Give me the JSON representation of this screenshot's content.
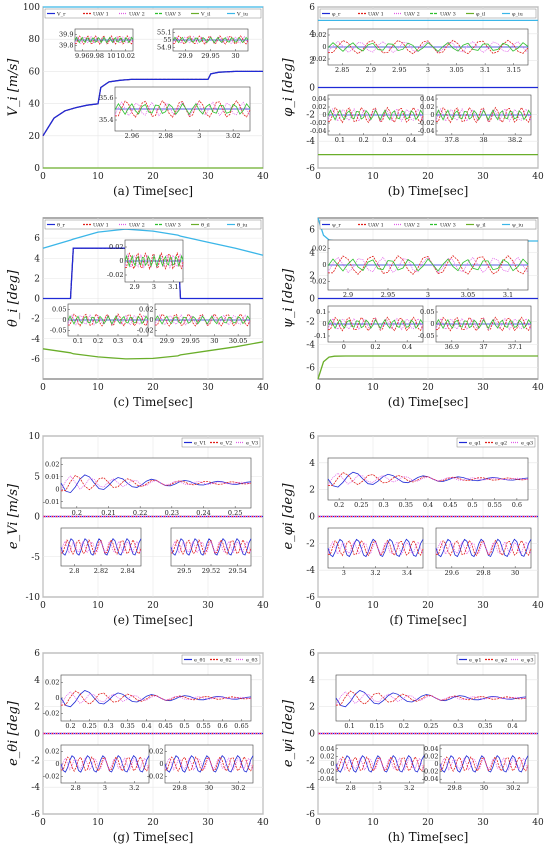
{
  "panels": [
    {
      "id": "a",
      "caption": "(a) Time[sec]",
      "ylabel": "V_i [m/s]",
      "xlim": [
        0,
        40
      ],
      "ylim": [
        0,
        100
      ],
      "xticks": [
        "0",
        "10",
        "20",
        "30",
        "40"
      ],
      "yticks": [
        "0",
        "20",
        "40",
        "60",
        "80",
        "100"
      ],
      "legend": [
        "V_r",
        "UAV 1",
        "UAV 2",
        "UAV 3",
        "V_il",
        "V_iu"
      ],
      "insets": [
        {
          "xticks": [
            "9.96",
            "9.98",
            "10",
            "10.02"
          ],
          "yticks": [
            "39.8",
            "39.9"
          ]
        },
        {
          "xticks": [
            "29.9",
            "29.95",
            "30"
          ],
          "yticks": [
            "54.9",
            "55",
            "55.1"
          ]
        },
        {
          "xticks": [
            "2.96",
            "2.98",
            "3",
            "3.02"
          ],
          "yticks": [
            "35.4",
            "35.6"
          ]
        }
      ]
    },
    {
      "id": "b",
      "caption": "(b) Time[sec]",
      "ylabel": "φ_i [deg]",
      "xlim": [
        0,
        40
      ],
      "ylim": [
        -6,
        6
      ],
      "xticks": [
        "0",
        "10",
        "20",
        "30",
        "40"
      ],
      "yticks": [
        "-6",
        "-4",
        "-2",
        "0",
        "2",
        "4",
        "6"
      ],
      "legend": [
        "φ_r",
        "UAV 1",
        "UAV 2",
        "UAV 3",
        "φ_il",
        "φ_iu"
      ],
      "insets": [
        {
          "xticks": [
            "2.85",
            "2.9",
            "2.95",
            "3",
            "3.05",
            "3.1",
            "3.15"
          ],
          "yticks": [
            "-0.02",
            "0",
            "0.02"
          ]
        },
        {
          "xticks": [
            "0.1",
            "0.2",
            "0.3",
            "0.4"
          ],
          "yticks": [
            "-0.04",
            "-0.02",
            "0",
            "0.02",
            "0.04"
          ]
        },
        {
          "xticks": [
            "37.8",
            "38",
            "38.2"
          ],
          "yticks": [
            "-0.04",
            "-0.02",
            "0",
            "0.02",
            "0.04"
          ]
        }
      ]
    },
    {
      "id": "c",
      "caption": "(c) Time[sec]",
      "ylabel": "θ_i [deg]",
      "xlim": [
        0,
        40
      ],
      "ylim": [
        -8,
        8
      ],
      "xticks": [
        "0",
        "10",
        "20",
        "30",
        "40"
      ],
      "yticks": [
        "-6",
        "-4",
        "-2",
        "0",
        "2",
        "4",
        "6"
      ],
      "legend": [
        "θ_r",
        "UAV 1",
        "UAV 2",
        "UAV 3",
        "θ_il",
        "θ_iu"
      ],
      "insets": [
        {
          "xticks": [
            "2.9",
            "3",
            "3.1"
          ],
          "yticks": [
            "-0.02",
            "0",
            "0.02"
          ]
        },
        {
          "xticks": [
            "0.1",
            "0.2",
            "0.3",
            "0.4"
          ],
          "yticks": [
            "-0.05",
            "0",
            "0.05"
          ]
        },
        {
          "xticks": [
            "29.9",
            "29.95",
            "30",
            "30.05"
          ],
          "yticks": [
            "-0.02",
            "0",
            "0.02"
          ]
        }
      ]
    },
    {
      "id": "d",
      "caption": "(d) Time[sec]",
      "ylabel": "ψ_i [deg]",
      "xlim": [
        0,
        40
      ],
      "ylim": [
        -7,
        7
      ],
      "xticks": [
        "0",
        "10",
        "20",
        "30",
        "40"
      ],
      "yticks": [
        "-6",
        "-4",
        "-2",
        "0",
        "2",
        "4",
        "6"
      ],
      "legend": [
        "ψ_r",
        "UAV 1",
        "UAV 2",
        "UAV 3",
        "ψ_il",
        "ψ_iu"
      ],
      "insets": [
        {
          "xticks": [
            "2.9",
            "2.95",
            "3",
            "3.05",
            "3.1"
          ],
          "yticks": [
            "-0.02",
            "0",
            "0.02"
          ]
        },
        {
          "xticks": [
            "0",
            "0.2",
            "0.4"
          ],
          "yticks": [
            "-0.1",
            "0",
            "0.1"
          ]
        },
        {
          "xticks": [
            "36.9",
            "37",
            "37.1"
          ],
          "yticks": [
            "-0.05",
            "0",
            "0.05"
          ]
        }
      ]
    },
    {
      "id": "e",
      "caption": "(e) Time[sec]",
      "ylabel": "e_Vi [m/s]",
      "xlim": [
        0,
        40
      ],
      "ylim": [
        -10,
        10
      ],
      "xticks": [
        "0",
        "10",
        "20",
        "30",
        "40"
      ],
      "yticks": [
        "-10",
        "-5",
        "0",
        "5",
        "10"
      ],
      "legend": [
        "e_V1",
        "e_V2",
        "e_V3"
      ],
      "insets": [
        {
          "xticks": [
            "0.2",
            "0.21",
            "0.22",
            "0.23",
            "0.24",
            "0.25"
          ],
          "yticks": [
            "-0.01",
            "0",
            "0.01",
            "0.02"
          ]
        },
        {
          "xticks": [
            "2.8",
            "2.82",
            "2.84"
          ],
          "yticks": []
        },
        {
          "xticks": [
            "29.5",
            "29.52",
            "29.54"
          ],
          "yticks": []
        }
      ]
    },
    {
      "id": "f",
      "caption": "(f) Time[sec]",
      "ylabel": "e_φi [deg]",
      "xlim": [
        0,
        40
      ],
      "ylim": [
        -6,
        6
      ],
      "xticks": [
        "0",
        "10",
        "20",
        "30",
        "40"
      ],
      "yticks": [
        "-6",
        "-4",
        "-2",
        "0",
        "2",
        "4",
        "6"
      ],
      "legend": [
        "e_φ1",
        "e_φ2",
        "e_φ3"
      ],
      "insets": [
        {
          "xticks": [
            "0.2",
            "0.25",
            "0.3",
            "0.35",
            "0.4",
            "0.45",
            "0.5",
            "0.55",
            "0.6"
          ],
          "yticks": []
        },
        {
          "xticks": [
            "3",
            "3.2",
            "3.4"
          ],
          "yticks": []
        },
        {
          "xticks": [
            "29.6",
            "29.8",
            "30"
          ],
          "yticks": []
        }
      ]
    },
    {
      "id": "g",
      "caption": "(g) Time[sec]",
      "ylabel": "e_θi [deg]",
      "xlim": [
        0,
        40
      ],
      "ylim": [
        -6,
        6
      ],
      "xticks": [
        "0",
        "10",
        "20",
        "30",
        "40"
      ],
      "yticks": [
        "-6",
        "-4",
        "-2",
        "0",
        "2",
        "4",
        "6"
      ],
      "legend": [
        "e_θ1",
        "e_θ2",
        "e_θ3"
      ],
      "insets": [
        {
          "xticks": [
            "0.2",
            "0.25",
            "0.3",
            "0.35",
            "0.4",
            "0.45",
            "0.5",
            "0.55",
            "0.6",
            "0.65"
          ],
          "yticks": [
            "-0.02",
            "0",
            "0.02"
          ]
        },
        {
          "xticks": [
            "2.8",
            "3",
            "3.2"
          ],
          "yticks": [
            "-0.02",
            "0",
            "0.02"
          ]
        },
        {
          "xticks": [
            "29.8",
            "30",
            "30.2"
          ],
          "yticks": [
            "-0.02",
            "0",
            "0.02"
          ]
        }
      ]
    },
    {
      "id": "h",
      "caption": "(h) Time[sec]",
      "ylabel": "e_ψi [deg]",
      "xlim": [
        0,
        40
      ],
      "ylim": [
        -6,
        6
      ],
      "xticks": [
        "0",
        "10",
        "20",
        "30",
        "40"
      ],
      "yticks": [
        "-6",
        "-4",
        "-2",
        "0",
        "2",
        "4",
        "6"
      ],
      "legend": [
        "e_ψ1",
        "e_ψ2",
        "e_ψ3"
      ],
      "insets": [
        {
          "xticks": [
            "0.1",
            "0.15",
            "0.2",
            "0.25",
            "0.3",
            "0.35",
            "0.4"
          ],
          "yticks": []
        },
        {
          "xticks": [
            "2.8",
            "3",
            "3.2"
          ],
          "yticks": [
            "-0.04",
            "-0.02",
            "0",
            "0.02",
            "0.04"
          ]
        },
        {
          "xticks": [
            "29.8",
            "30",
            "30.2"
          ],
          "yticks": [
            "-0.04",
            "-0.02",
            "0",
            "0.02",
            "0.04"
          ]
        }
      ]
    }
  ],
  "series_colors": {
    "reference": "#1f2ad6",
    "uav1": "#e0201b",
    "uav2": "#e05ce6",
    "uav3": "#2fc02f",
    "lower_bound": "#6aae2a",
    "upper_bound": "#3bb6e8",
    "err1": "#1f2ad6",
    "err2": "#e0201b",
    "err3": "#e05ce6"
  },
  "chart_data": [
    {
      "type": "line",
      "xlabel": "Time[sec]",
      "ylabel": "V_i [m/s]",
      "x": [
        0,
        2,
        4,
        6,
        8,
        10,
        10.5,
        12,
        14,
        16,
        20,
        25,
        30,
        30.5,
        32,
        35,
        40
      ],
      "series": [
        {
          "name": "V_r",
          "values": [
            20,
            31,
            35.5,
            37.5,
            39,
            39.9,
            50,
            53.5,
            54.5,
            55,
            55,
            55,
            55,
            58.5,
            59.5,
            60,
            60
          ]
        },
        {
          "name": "V_il",
          "values": [
            0,
            0,
            0,
            0,
            0,
            0,
            0,
            0,
            0,
            0,
            0,
            0,
            0,
            0,
            0,
            0,
            0
          ]
        },
        {
          "name": "V_iu",
          "values": [
            100,
            100,
            100,
            100,
            100,
            100,
            100,
            100,
            100,
            100,
            100,
            100,
            100,
            100,
            100,
            100,
            100
          ]
        }
      ],
      "xlim": [
        0,
        40
      ],
      "ylim": [
        0,
        100
      ],
      "grid": true,
      "legend_position": "top"
    },
    {
      "type": "line",
      "xlabel": "Time[sec]",
      "ylabel": "φ_i [deg]",
      "x": [
        0,
        40
      ],
      "series": [
        {
          "name": "φ_r",
          "values": [
            0,
            0
          ]
        },
        {
          "name": "φ_il",
          "values": [
            -5,
            -5
          ]
        },
        {
          "name": "φ_iu",
          "values": [
            5,
            5
          ]
        }
      ],
      "xlim": [
        0,
        40
      ],
      "ylim": [
        -6,
        6
      ],
      "grid": true,
      "legend_position": "top"
    },
    {
      "type": "line",
      "xlabel": "Time[sec]",
      "ylabel": "θ_i [deg]",
      "x": [
        0,
        5,
        5.5,
        10,
        15,
        20,
        24.5,
        25,
        30,
        35,
        40
      ],
      "series": [
        {
          "name": "θ_r",
          "values": [
            0,
            0,
            5,
            5,
            5,
            5,
            5,
            0,
            0,
            0,
            0
          ]
        },
        {
          "name": "θ_il",
          "values": [
            -5,
            -5.4,
            -5.5,
            -5.8,
            -6,
            -5.95,
            -5.7,
            -5.6,
            -5.2,
            -4.8,
            -4.3
          ]
        },
        {
          "name": "θ_iu",
          "values": [
            5,
            5.8,
            5.9,
            6.6,
            6.9,
            6.7,
            6.3,
            6.2,
            5.6,
            5.0,
            4.3
          ]
        }
      ],
      "xlim": [
        0,
        40
      ],
      "ylim": [
        -8,
        8
      ],
      "grid": true,
      "legend_position": "top"
    },
    {
      "type": "line",
      "xlabel": "Time[sec]",
      "ylabel": "ψ_i [deg]",
      "x": [
        0,
        1,
        2,
        3,
        5,
        10,
        20,
        30,
        40
      ],
      "series": [
        {
          "name": "ψ_r",
          "values": [
            0,
            0,
            0,
            0,
            0,
            0,
            0,
            0,
            0
          ]
        },
        {
          "name": "ψ_il",
          "values": [
            -7,
            -5.5,
            -5.1,
            -5.02,
            -5,
            -5,
            -5,
            -5,
            -5
          ]
        },
        {
          "name": "ψ_iu",
          "values": [
            7,
            5.5,
            5.1,
            5.02,
            5,
            5,
            5,
            5,
            5
          ]
        }
      ],
      "xlim": [
        0,
        40
      ],
      "ylim": [
        -7,
        7
      ],
      "grid": true,
      "legend_position": "top"
    },
    {
      "type": "line",
      "xlabel": "Time[sec]",
      "ylabel": "e_Vi [m/s]",
      "x": [
        0,
        40
      ],
      "series": [
        {
          "name": "e_V1",
          "values": [
            0,
            0
          ]
        },
        {
          "name": "e_V2",
          "values": [
            0,
            0
          ]
        },
        {
          "name": "e_V3",
          "values": [
            0,
            0
          ]
        }
      ],
      "xlim": [
        0,
        40
      ],
      "ylim": [
        -10,
        10
      ],
      "grid": true,
      "legend_position": "top-right"
    },
    {
      "type": "line",
      "xlabel": "Time[sec]",
      "ylabel": "e_φi [deg]",
      "x": [
        0,
        40
      ],
      "series": [
        {
          "name": "e_φ1",
          "values": [
            0,
            0
          ]
        },
        {
          "name": "e_φ2",
          "values": [
            0,
            0
          ]
        },
        {
          "name": "e_φ3",
          "values": [
            0,
            0
          ]
        }
      ],
      "xlim": [
        0,
        40
      ],
      "ylim": [
        -6,
        6
      ],
      "grid": true,
      "legend_position": "top-right"
    },
    {
      "type": "line",
      "xlabel": "Time[sec]",
      "ylabel": "e_θi [deg]",
      "x": [
        0,
        40
      ],
      "series": [
        {
          "name": "e_θ1",
          "values": [
            0,
            0
          ]
        },
        {
          "name": "e_θ2",
          "values": [
            0,
            0
          ]
        },
        {
          "name": "e_θ3",
          "values": [
            0,
            0
          ]
        }
      ],
      "xlim": [
        0,
        40
      ],
      "ylim": [
        -6,
        6
      ],
      "grid": true,
      "legend_position": "top-right"
    },
    {
      "type": "line",
      "xlabel": "Time[sec]",
      "ylabel": "e_ψi [deg]",
      "x": [
        0,
        40
      ],
      "series": [
        {
          "name": "e_ψ1",
          "values": [
            0,
            0
          ]
        },
        {
          "name": "e_ψ2",
          "values": [
            0,
            0
          ]
        },
        {
          "name": "e_ψ3",
          "values": [
            0,
            0
          ]
        }
      ],
      "xlim": [
        0,
        40
      ],
      "ylim": [
        -6,
        6
      ],
      "grid": true,
      "legend_position": "top-right"
    }
  ]
}
